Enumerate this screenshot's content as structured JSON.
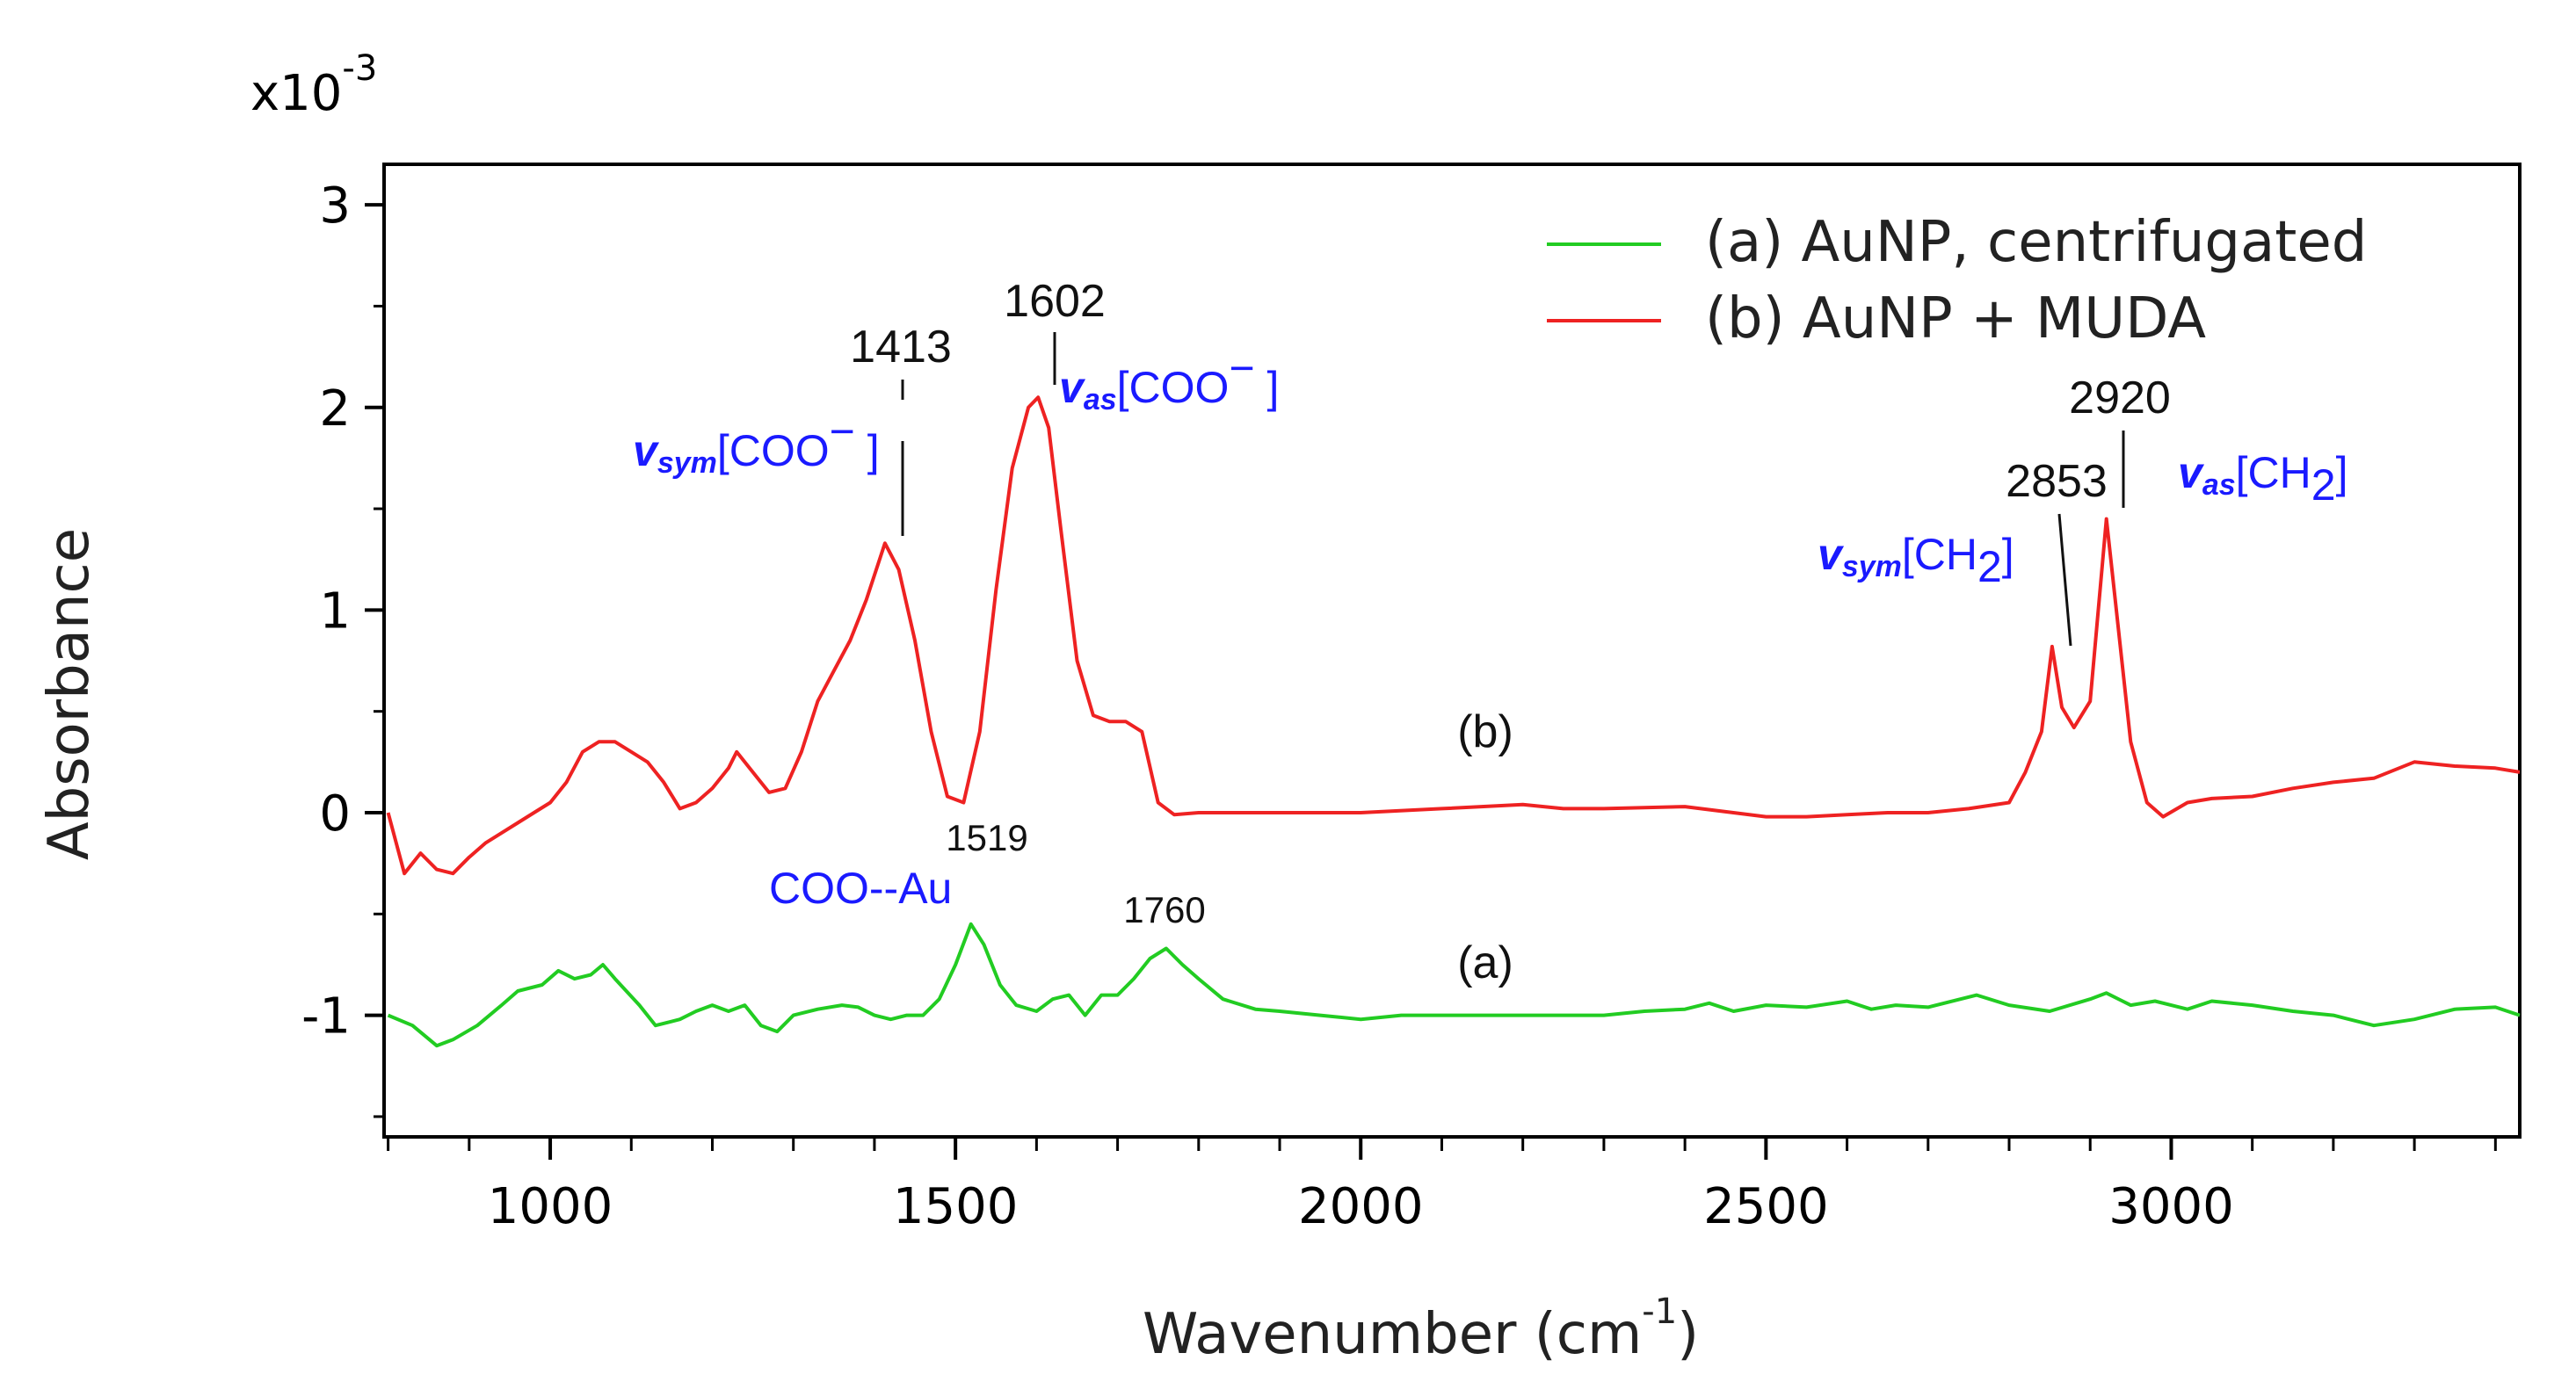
{
  "chart_data": {
    "type": "line",
    "ylabel": "Absorbance",
    "scale_label": "x10",
    "scale_exp": "-3",
    "xlabel_text": "Wavenumber (cm",
    "xlabel_sup": "-1",
    "xlabel_close": ")",
    "xlim": [
      795,
      3430
    ],
    "ylim": [
      -1.6,
      3.2
    ],
    "xticks": [
      "1000",
      "1500",
      "2000",
      "2500",
      "3000"
    ],
    "xtick_values": [
      1000,
      1500,
      2000,
      2500,
      3000
    ],
    "yticks": [
      "3",
      "2",
      "1",
      "0",
      "-1"
    ],
    "ytick_values": [
      3,
      2,
      1,
      0,
      -1
    ],
    "series": [
      {
        "name": "(a) AuNP, centrifugated",
        "color": "#22cc22",
        "x": [
          800,
          830,
          860,
          880,
          910,
          940,
          960,
          990,
          1010,
          1030,
          1050,
          1065,
          1080,
          1110,
          1130,
          1160,
          1180,
          1200,
          1220,
          1240,
          1260,
          1280,
          1300,
          1330,
          1360,
          1380,
          1400,
          1420,
          1440,
          1460,
          1480,
          1500,
          1519,
          1535,
          1555,
          1575,
          1600,
          1620,
          1640,
          1660,
          1680,
          1700,
          1720,
          1740,
          1760,
          1780,
          1800,
          1830,
          1870,
          1900,
          1950,
          2000,
          2050,
          2100,
          2150,
          2200,
          2250,
          2300,
          2350,
          2400,
          2430,
          2460,
          2500,
          2550,
          2600,
          2630,
          2660,
          2700,
          2760,
          2800,
          2850,
          2900,
          2920,
          2950,
          2980,
          3020,
          3050,
          3100,
          3150,
          3200,
          3250,
          3300,
          3350,
          3400,
          3430
        ],
        "values": [
          -1.0,
          -1.05,
          -1.15,
          -1.12,
          -1.05,
          -0.95,
          -0.88,
          -0.85,
          -0.78,
          -0.82,
          -0.8,
          -0.75,
          -0.82,
          -0.95,
          -1.05,
          -1.02,
          -0.98,
          -0.95,
          -0.98,
          -0.95,
          -1.05,
          -1.08,
          -1.0,
          -0.97,
          -0.95,
          -0.96,
          -1.0,
          -1.02,
          -1.0,
          -1.0,
          -0.92,
          -0.75,
          -0.55,
          -0.65,
          -0.85,
          -0.95,
          -0.98,
          -0.92,
          -0.9,
          -1.0,
          -0.9,
          -0.9,
          -0.82,
          -0.72,
          -0.67,
          -0.75,
          -0.82,
          -0.92,
          -0.97,
          -0.98,
          -1.0,
          -1.02,
          -1.0,
          -1.0,
          -1.0,
          -1.0,
          -1.0,
          -1.0,
          -0.98,
          -0.97,
          -0.94,
          -0.98,
          -0.95,
          -0.96,
          -0.93,
          -0.97,
          -0.95,
          -0.96,
          -0.9,
          -0.95,
          -0.98,
          -0.92,
          -0.89,
          -0.95,
          -0.93,
          -0.97,
          -0.93,
          -0.95,
          -0.98,
          -1.0,
          -1.05,
          -1.02,
          -0.97,
          -0.96,
          -1.0
        ]
      },
      {
        "name": "(b) AuNP + MUDA",
        "color": "#ee2222",
        "x": [
          800,
          820,
          840,
          860,
          880,
          900,
          920,
          940,
          960,
          980,
          1000,
          1020,
          1040,
          1060,
          1080,
          1100,
          1120,
          1140,
          1160,
          1180,
          1200,
          1220,
          1230,
          1250,
          1270,
          1290,
          1310,
          1330,
          1350,
          1370,
          1390,
          1413,
          1430,
          1450,
          1470,
          1490,
          1510,
          1530,
          1550,
          1570,
          1590,
          1602,
          1615,
          1630,
          1650,
          1670,
          1690,
          1710,
          1730,
          1750,
          1770,
          1800,
          1900,
          2000,
          2100,
          2200,
          2250,
          2300,
          2400,
          2500,
          2550,
          2600,
          2650,
          2700,
          2750,
          2800,
          2820,
          2840,
          2853,
          2865,
          2880,
          2900,
          2920,
          2935,
          2950,
          2970,
          2990,
          3020,
          3050,
          3100,
          3150,
          3200,
          3250,
          3300,
          3350,
          3400,
          3430
        ],
        "values": [
          0.0,
          -0.3,
          -0.2,
          -0.28,
          -0.3,
          -0.22,
          -0.15,
          -0.1,
          -0.05,
          0.0,
          0.05,
          0.15,
          0.3,
          0.35,
          0.35,
          0.3,
          0.25,
          0.15,
          0.02,
          0.05,
          0.12,
          0.22,
          0.3,
          0.2,
          0.1,
          0.12,
          0.3,
          0.55,
          0.7,
          0.85,
          1.05,
          1.33,
          1.2,
          0.85,
          0.4,
          0.08,
          0.05,
          0.4,
          1.1,
          1.7,
          2.0,
          2.05,
          1.9,
          1.4,
          0.75,
          0.48,
          0.45,
          0.45,
          0.4,
          0.05,
          -0.01,
          0.0,
          0.0,
          0.0,
          0.02,
          0.04,
          0.02,
          0.02,
          0.03,
          -0.02,
          -0.02,
          -0.01,
          0.0,
          0.0,
          0.02,
          0.05,
          0.2,
          0.4,
          0.82,
          0.52,
          0.42,
          0.55,
          1.45,
          0.9,
          0.35,
          0.05,
          -0.02,
          0.05,
          0.07,
          0.08,
          0.12,
          0.15,
          0.17,
          0.25,
          0.23,
          0.22,
          0.2
        ]
      }
    ],
    "annotations": {
      "p1413": "1413",
      "p1602": "1602",
      "p2853": "2853",
      "p2920": "2920",
      "p1519": "1519",
      "p1760": "1760",
      "label_b": "(b)",
      "label_a": "(a)",
      "coo_au": "COO--Au",
      "v_letter": "v",
      "sub_sym": "sym",
      "sub_as": "as",
      "coo_open": "[COO",
      "coo_minus": "−",
      "coo_close": " ]",
      "ch_open": "[CH",
      "ch_sub": "2",
      "ch_close": "]"
    },
    "legend_position": "top-right"
  }
}
